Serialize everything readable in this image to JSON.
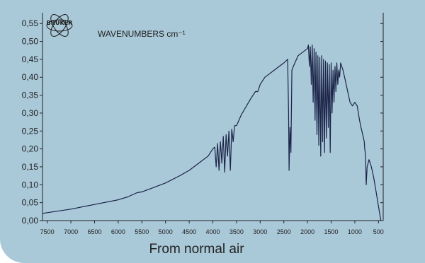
{
  "caption": "From normal air",
  "logo_text": "BRUKER",
  "chart_data": {
    "type": "line",
    "annotation": "WAVENUMBERS cm⁻¹",
    "xlim": [
      7600,
      400
    ],
    "ylim": [
      0,
      0.58
    ],
    "x_ticks": [
      7500,
      7000,
      6500,
      6000,
      5500,
      5000,
      4500,
      4000,
      3500,
      3000,
      2500,
      2000,
      1500,
      1000,
      500
    ],
    "y_ticks": [
      0.0,
      0.05,
      0.1,
      0.15,
      0.2,
      0.25,
      0.3,
      0.35,
      0.4,
      0.45,
      0.5,
      0.55
    ],
    "y_tick_labels": [
      "0,00",
      "0,05",
      "0,10",
      "0,15",
      "0,20",
      "0,25",
      "0,30",
      "0,35",
      "0,40",
      "0,45",
      "0,50",
      "0,55"
    ],
    "line_color": "#1c2448",
    "series": [
      {
        "x": [
          7600,
          7500,
          7000,
          6500,
          6000,
          5800,
          5600,
          5500,
          5300,
          5000,
          4700,
          4500,
          4300,
          4100,
          4000,
          3960,
          3930,
          3900,
          3870,
          3840,
          3810,
          3780,
          3750,
          3720,
          3690,
          3660,
          3630,
          3600,
          3570,
          3540,
          3500,
          3400,
          3200,
          3100,
          3050,
          3000,
          2900,
          2800,
          2700,
          2600,
          2500,
          2420,
          2400,
          2390,
          2370,
          2350,
          2330,
          2300,
          2200,
          2100,
          2000,
          1980,
          1960,
          1940,
          1920,
          1900,
          1880,
          1860,
          1840,
          1820,
          1800,
          1780,
          1760,
          1740,
          1720,
          1700,
          1680,
          1660,
          1640,
          1620,
          1600,
          1580,
          1560,
          1540,
          1520,
          1500,
          1480,
          1460,
          1440,
          1420,
          1400,
          1380,
          1360,
          1340,
          1320,
          1300,
          1250,
          1200,
          1150,
          1100,
          1050,
          1000,
          950,
          900,
          870,
          850,
          800,
          790,
          780,
          770,
          760,
          740,
          700,
          650,
          600,
          550,
          500,
          450
        ],
        "y": [
          0.02,
          0.022,
          0.032,
          0.045,
          0.058,
          0.066,
          0.078,
          0.08,
          0.09,
          0.105,
          0.125,
          0.14,
          0.16,
          0.18,
          0.2,
          0.205,
          0.15,
          0.215,
          0.14,
          0.22,
          0.16,
          0.235,
          0.135,
          0.24,
          0.18,
          0.25,
          0.14,
          0.255,
          0.22,
          0.265,
          0.265,
          0.295,
          0.34,
          0.36,
          0.36,
          0.38,
          0.4,
          0.41,
          0.42,
          0.43,
          0.44,
          0.45,
          0.3,
          0.14,
          0.26,
          0.19,
          0.42,
          0.43,
          0.46,
          0.47,
          0.48,
          0.49,
          0.43,
          0.485,
          0.38,
          0.49,
          0.33,
          0.48,
          0.28,
          0.47,
          0.24,
          0.46,
          0.21,
          0.455,
          0.18,
          0.46,
          0.22,
          0.45,
          0.19,
          0.445,
          0.23,
          0.44,
          0.26,
          0.435,
          0.19,
          0.44,
          0.3,
          0.42,
          0.33,
          0.43,
          0.36,
          0.44,
          0.38,
          0.42,
          0.4,
          0.44,
          0.42,
          0.39,
          0.36,
          0.33,
          0.32,
          0.33,
          0.32,
          0.28,
          0.26,
          0.25,
          0.22,
          0.2,
          0.19,
          0.16,
          0.1,
          0.15,
          0.17,
          0.15,
          0.12,
          0.08,
          0.04,
          0.0
        ]
      }
    ]
  }
}
